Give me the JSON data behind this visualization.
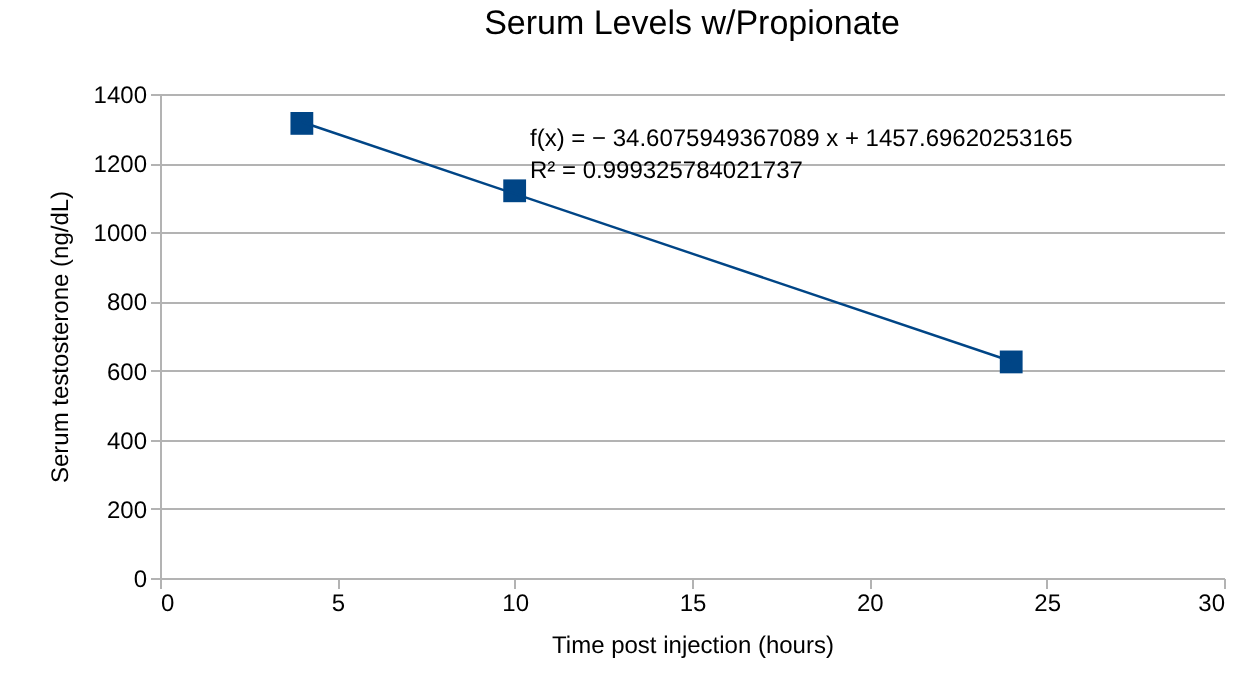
{
  "chart_data": {
    "type": "scatter",
    "title": "Serum Levels w/Propionate",
    "xlabel": "Time post injection (hours)",
    "ylabel": "Serum testosterone (ng/dL)",
    "x": [
      4,
      10,
      24
    ],
    "series": [
      {
        "color": "#004586",
        "marker": "square",
        "values": [
          1315,
          1120,
          625
        ]
      },
      {
        "type": "line",
        "color": "#004586",
        "x": [
          4,
          24
        ],
        "values": [
          1319,
          627
        ]
      }
    ],
    "annotations": [
      "f(x) = − 34.6075949367089 x + 1457.69620253165",
      "R² = 0.999325784021737"
    ],
    "xlim": [
      0,
      30
    ],
    "xticks": [
      0,
      5,
      10,
      15,
      20,
      25,
      30
    ],
    "ylim": [
      0,
      1400
    ],
    "yticks": [
      0,
      200,
      400,
      600,
      800,
      1000,
      1200,
      1400
    ],
    "grid": "y"
  }
}
